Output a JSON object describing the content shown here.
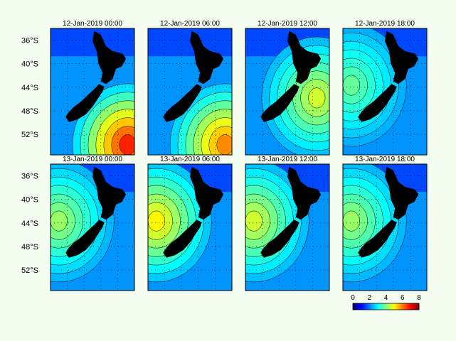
{
  "chart_data": {
    "type": "heatmap",
    "colormap": "jet",
    "panels": [
      {
        "title": "12-Jan-2019 00:00",
        "peak_value": 7.0,
        "peak_location": "south-east"
      },
      {
        "title": "12-Jan-2019 06:00",
        "peak_value": 6.0,
        "peak_location": "south-east"
      },
      {
        "title": "12-Jan-2019 12:00",
        "peak_value": 4.5,
        "peak_location": "east"
      },
      {
        "title": "12-Jan-2019 18:00",
        "peak_value": 3.5,
        "peak_location": "west"
      },
      {
        "title": "13-Jan-2019 00:00",
        "peak_value": 4.0,
        "peak_location": "west"
      },
      {
        "title": "13-Jan-2019 06:00",
        "peak_value": 5.0,
        "peak_location": "west"
      },
      {
        "title": "13-Jan-2019 12:00",
        "peak_value": 4.5,
        "peak_location": "west"
      },
      {
        "title": "13-Jan-2019 18:00",
        "peak_value": 4.0,
        "peak_location": "west"
      }
    ],
    "y_ticks": [
      "36°S",
      "40°S",
      "44°S",
      "48°S",
      "52°S"
    ],
    "y_tick_values": [
      36,
      40,
      44,
      48,
      52
    ],
    "ylim": [
      34,
      55.5
    ],
    "colorbar": {
      "ticks": [
        "0",
        "2",
        "4",
        "6",
        "8"
      ],
      "tick_values": [
        0,
        2,
        4,
        6,
        8
      ],
      "range": [
        0,
        8
      ]
    },
    "grid": true
  }
}
